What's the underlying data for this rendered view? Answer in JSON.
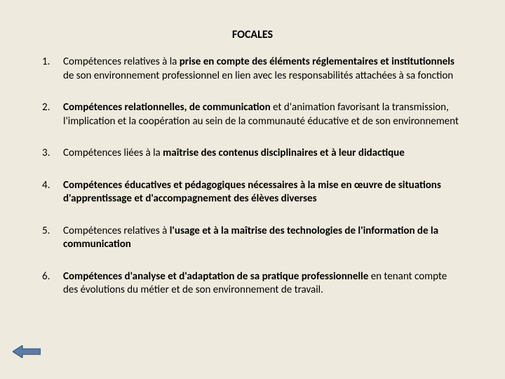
{
  "title": "FOCALES",
  "colors": {
    "background": "#eeeadd",
    "text": "#000000",
    "arrow_fill": "#5b7ca8",
    "arrow_stroke": "#2f4a6b"
  },
  "typography": {
    "title_fontsize": 16,
    "title_weight": 700,
    "item_fontsize": 15,
    "line_height": 1.3,
    "font_family": "Calibri"
  },
  "items": [
    {
      "segments": [
        {
          "text": "Compétences relatives à la ",
          "bold": false
        },
        {
          "text": "prise en compte des éléments réglementaires et institutionnels ",
          "bold": true
        },
        {
          "text": "de son environnement professionnel en lien avec les responsabilités attachées à sa fonction",
          "bold": false
        }
      ]
    },
    {
      "segments": [
        {
          "text": "Compétences relationnelles, de communication ",
          "bold": true
        },
        {
          "text": "et d'animation favorisant la transmission, l'implication et la coopération au sein de la communauté éducative et de son environnement",
          "bold": false
        }
      ]
    },
    {
      "segments": [
        {
          "text": "Compétences liées à la ",
          "bold": false
        },
        {
          "text": "maîtrise des contenus disciplinaires et à leur didactique",
          "bold": true
        }
      ]
    },
    {
      "segments": [
        {
          "text": "Compétences éducatives et pédagogiques nécessaires à la mise en œuvre de situations d'apprentissage et d'accompagnement des élèves diverses",
          "bold": true
        }
      ]
    },
    {
      "segments": [
        {
          "text": "Compétences relatives à ",
          "bold": false
        },
        {
          "text": "l'usage et à la maîtrise des technologies de l'information de la communication",
          "bold": true
        }
      ]
    },
    {
      "segments": [
        {
          "text": "Compétences d'analyse et d'adaptation de sa pratique professionnelle ",
          "bold": true
        },
        {
          "text": "en tenant compte des évolutions du métier et de son environnement de travail.",
          "bold": false
        }
      ]
    }
  ]
}
